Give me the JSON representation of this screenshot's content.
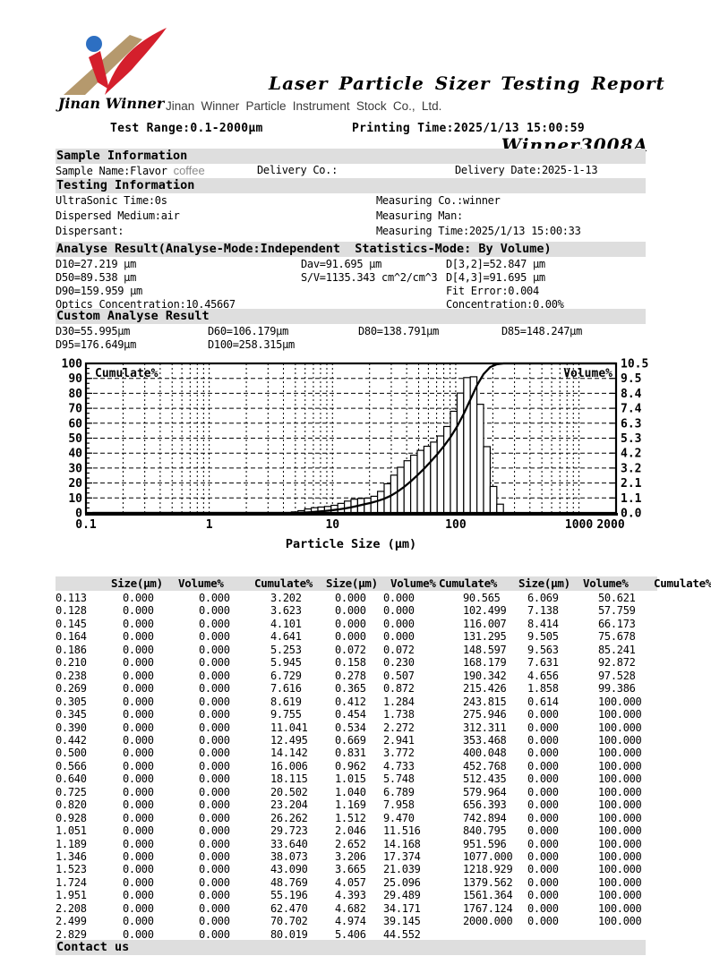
{
  "colors": {
    "section_bar_bg": "#dedede",
    "logo_red": "#d41f2c",
    "logo_tan": "#b5996d",
    "logo_blue": "#2d6fc2",
    "muted_text": "#8a8a8a",
    "company_text": "#3a3a3a"
  },
  "header": {
    "logo_caption": "Jinan Winner",
    "report_title": "Laser Particle Sizer Testing Report",
    "report_model": "Winner3008A",
    "company_name": "Jinan Winner Particle Instrument Stock Co., Ltd.",
    "test_range": "Test Range:0.1-2000μm",
    "printing_time": "Printing Time:2025/1/13 15:00:59"
  },
  "sample_information": {
    "section_title": "Sample Information",
    "sample_name": "Sample Name:Flavor ",
    "sample_name_suffix": "coffee",
    "delivery_co": "Delivery Co.:",
    "delivery_date": "Delivery Date:2025-1-13"
  },
  "testing_information": {
    "section_title": "Testing Information",
    "rows": [
      [
        "UltraSonic Time:0s",
        "Measuring Co.:winner"
      ],
      [
        "Dispersed Medium:air",
        "Measuring Man:"
      ],
      [
        "Dispersant:",
        "Measuring Time:2025/1/13 15:00:33"
      ]
    ]
  },
  "analyse_result": {
    "section_title": "Analyse Result(Analyse-Mode:Independent  Statistics-Mode: By Volume)",
    "rows": [
      [
        "D10=27.219 μm",
        "Dav=91.695 μm",
        "D[3,2]=52.847 μm"
      ],
      [
        "D50=89.538 μm",
        "S/V=1135.343 cm^2/cm^3",
        "D[4,3]=91.695 μm"
      ],
      [
        "D90=159.959 μm",
        "",
        "Fit Error:0.004"
      ],
      [
        "Optics Concentration:10.45667",
        "",
        "Concentration:0.00%"
      ]
    ]
  },
  "custom_analyse_result": {
    "section_title": "Custom Analyse Result",
    "rows": [
      [
        "D30=55.995μm",
        "D60=106.179μm",
        "D80=138.791μm",
        "D85=148.247μm"
      ],
      [
        "D95=176.649μm",
        "D100=258.315μm",
        "",
        ""
      ]
    ]
  },
  "chart_data": {
    "type": "histogram+cumulative-line",
    "xlabel": "Particle Size (μm)",
    "x_scale": "log",
    "x_range": [
      0.1,
      2000
    ],
    "x_tick_values": [
      0.1,
      1,
      10,
      100,
      1000,
      2000
    ],
    "x_tick_labels": [
      "0.1",
      "1",
      "10",
      "100",
      "1000",
      "2000"
    ],
    "left_axis": {
      "legend": "Cumulate%",
      "min": 0,
      "max": 100,
      "tick_step": 10
    },
    "right_axis": {
      "legend": "Volume%",
      "min": 0,
      "max": 10.5,
      "tick_labels": [
        "0.0",
        "1.1",
        "2.1",
        "3.2",
        "4.2",
        "5.3",
        "6.3",
        "7.4",
        "8.4",
        "9.5",
        "10.5"
      ]
    },
    "grid": true,
    "sizes_um": [
      0.113,
      0.128,
      0.145,
      0.164,
      0.186,
      0.21,
      0.238,
      0.269,
      0.305,
      0.345,
      0.39,
      0.442,
      0.5,
      0.566,
      0.64,
      0.725,
      0.82,
      0.928,
      1.051,
      1.189,
      1.346,
      1.523,
      1.724,
      1.951,
      2.208,
      2.499,
      2.829,
      3.202,
      3.623,
      4.101,
      4.641,
      5.253,
      5.945,
      6.729,
      7.616,
      8.619,
      9.755,
      11.041,
      12.495,
      14.142,
      16.006,
      18.115,
      20.502,
      23.204,
      26.262,
      29.723,
      33.64,
      38.073,
      43.09,
      48.769,
      55.196,
      62.47,
      70.702,
      80.019,
      90.565,
      102.499,
      116.007,
      131.295,
      148.597,
      168.179,
      190.342,
      215.426,
      243.815,
      275.946,
      312.311,
      353.468,
      400.048,
      452.768,
      512.435,
      579.964,
      656.393,
      742.894,
      840.795,
      951.596,
      1077.0,
      1218.929,
      1379.562,
      1561.364,
      1767.124,
      2000.0
    ],
    "volume_percent": [
      0.0,
      0.0,
      0.0,
      0.0,
      0.0,
      0.0,
      0.0,
      0.0,
      0.0,
      0.0,
      0.0,
      0.0,
      0.0,
      0.0,
      0.0,
      0.0,
      0.0,
      0.0,
      0.0,
      0.0,
      0.0,
      0.0,
      0.0,
      0.0,
      0.0,
      0.0,
      0.0,
      0.0,
      0.0,
      0.0,
      0.0,
      0.072,
      0.158,
      0.278,
      0.365,
      0.412,
      0.454,
      0.534,
      0.669,
      0.831,
      0.962,
      1.015,
      1.04,
      1.169,
      1.512,
      2.046,
      2.652,
      3.206,
      3.665,
      4.057,
      4.393,
      4.682,
      4.974,
      5.406,
      6.069,
      7.138,
      8.414,
      9.505,
      9.563,
      7.631,
      4.656,
      1.858,
      0.614,
      0.0,
      0.0,
      0.0,
      0.0,
      0.0,
      0.0,
      0.0,
      0.0,
      0.0,
      0.0,
      0.0,
      0.0,
      0.0,
      0.0,
      0.0,
      0.0,
      0.0
    ],
    "cumulate_percent": [
      0.0,
      0.0,
      0.0,
      0.0,
      0.0,
      0.0,
      0.0,
      0.0,
      0.0,
      0.0,
      0.0,
      0.0,
      0.0,
      0.0,
      0.0,
      0.0,
      0.0,
      0.0,
      0.0,
      0.0,
      0.0,
      0.0,
      0.0,
      0.0,
      0.0,
      0.0,
      0.0,
      0.0,
      0.0,
      0.0,
      0.0,
      0.072,
      0.23,
      0.507,
      0.872,
      1.284,
      1.738,
      2.272,
      2.941,
      3.772,
      4.733,
      5.748,
      6.789,
      7.958,
      9.47,
      11.516,
      14.168,
      17.374,
      21.039,
      25.096,
      29.489,
      34.171,
      39.145,
      44.552,
      50.621,
      57.759,
      66.173,
      75.678,
      85.241,
      92.872,
      97.528,
      99.386,
      100.0,
      100.0,
      100.0,
      100.0,
      100.0,
      100.0,
      100.0,
      100.0,
      100.0,
      100.0,
      100.0,
      100.0,
      100.0,
      100.0,
      100.0,
      100.0,
      100.0,
      100.0
    ]
  },
  "results_table": {
    "headers": [
      "Size(μm)",
      "Volume%",
      "Cumulate%",
      "Size(μm)",
      "Volume%",
      "Cumulate%",
      "Size(μm)",
      "Volume%",
      "Cumulate%"
    ],
    "rows_per_group": 27,
    "groups": 3
  },
  "contact": {
    "section_title": "Contact us"
  }
}
